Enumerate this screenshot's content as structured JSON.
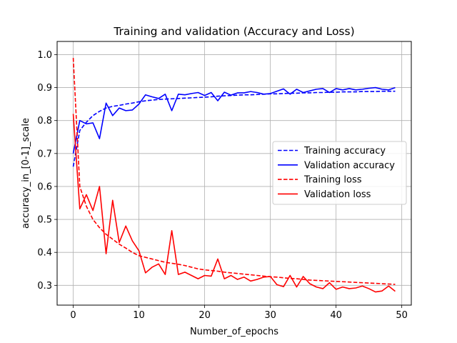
{
  "chart_data": {
    "type": "line",
    "title": "Training and validation (Accuracy and Loss)",
    "xlabel": "Number_of_epochs",
    "ylabel": "accuracy_in_[0-1]_scale",
    "xlim": [
      -2.45,
      51.45
    ],
    "ylim": [
      0.24,
      1.04
    ],
    "xticks": [
      0,
      10,
      20,
      30,
      40,
      50
    ],
    "yticks": [
      0.3,
      0.4,
      0.5,
      0.6,
      0.7,
      0.8,
      0.9,
      1.0
    ],
    "xtick_labels": [
      "0",
      "10",
      "20",
      "30",
      "40",
      "50"
    ],
    "ytick_labels": [
      "0.3",
      "0.4",
      "0.5",
      "0.6",
      "0.7",
      "0.8",
      "0.9",
      "1.0"
    ],
    "grid": true,
    "legend_position": "center-right",
    "x": [
      0,
      1,
      2,
      3,
      4,
      5,
      6,
      7,
      8,
      9,
      10,
      11,
      12,
      13,
      14,
      15,
      16,
      17,
      18,
      19,
      20,
      21,
      22,
      23,
      24,
      25,
      26,
      27,
      28,
      29,
      30,
      31,
      32,
      33,
      34,
      35,
      36,
      37,
      38,
      39,
      40,
      41,
      42,
      43,
      44,
      45,
      46,
      47,
      48,
      49
    ],
    "series": [
      {
        "name": "Training accuracy",
        "color": "#0000ff",
        "dash": "dashed",
        "values": [
          0.66,
          0.77,
          0.795,
          0.815,
          0.828,
          0.838,
          0.843,
          0.846,
          0.85,
          0.853,
          0.857,
          0.86,
          0.862,
          0.864,
          0.865,
          0.866,
          0.867,
          0.868,
          0.869,
          0.87,
          0.871,
          0.872,
          0.874,
          0.875,
          0.876,
          0.877,
          0.878,
          0.878,
          0.879,
          0.88,
          0.881,
          0.881,
          0.882,
          0.883,
          0.883,
          0.884,
          0.884,
          0.885,
          0.885,
          0.886,
          0.886,
          0.887,
          0.887,
          0.887,
          0.888,
          0.888,
          0.888,
          0.889,
          0.889,
          0.889
        ]
      },
      {
        "name": "Validation accuracy",
        "color": "#0000ff",
        "dash": "solid",
        "values": [
          0.7,
          0.8,
          0.79,
          0.793,
          0.745,
          0.853,
          0.815,
          0.838,
          0.83,
          0.832,
          0.85,
          0.878,
          0.872,
          0.867,
          0.88,
          0.83,
          0.88,
          0.878,
          0.882,
          0.885,
          0.876,
          0.885,
          0.86,
          0.886,
          0.877,
          0.884,
          0.884,
          0.888,
          0.885,
          0.88,
          0.882,
          0.889,
          0.896,
          0.88,
          0.895,
          0.885,
          0.89,
          0.895,
          0.897,
          0.885,
          0.897,
          0.893,
          0.897,
          0.893,
          0.895,
          0.898,
          0.9,
          0.895,
          0.893,
          0.9
        ]
      },
      {
        "name": "Training loss",
        "color": "#ff0000",
        "dash": "dashed",
        "values": [
          0.99,
          0.6,
          0.54,
          0.5,
          0.475,
          0.455,
          0.44,
          0.425,
          0.413,
          0.4,
          0.39,
          0.385,
          0.38,
          0.375,
          0.37,
          0.367,
          0.364,
          0.36,
          0.355,
          0.35,
          0.347,
          0.345,
          0.343,
          0.34,
          0.338,
          0.336,
          0.334,
          0.332,
          0.33,
          0.328,
          0.326,
          0.325,
          0.323,
          0.321,
          0.32,
          0.318,
          0.316,
          0.315,
          0.314,
          0.313,
          0.312,
          0.311,
          0.31,
          0.309,
          0.308,
          0.307,
          0.306,
          0.305,
          0.304,
          0.303
        ]
      },
      {
        "name": "Validation loss",
        "color": "#ff0000",
        "dash": "solid",
        "values": [
          0.82,
          0.532,
          0.575,
          0.527,
          0.6,
          0.396,
          0.558,
          0.43,
          0.48,
          0.435,
          0.405,
          0.338,
          0.355,
          0.365,
          0.333,
          0.466,
          0.333,
          0.34,
          0.33,
          0.32,
          0.33,
          0.328,
          0.38,
          0.32,
          0.33,
          0.318,
          0.325,
          0.313,
          0.318,
          0.325,
          0.327,
          0.302,
          0.296,
          0.33,
          0.295,
          0.327,
          0.305,
          0.295,
          0.29,
          0.308,
          0.288,
          0.295,
          0.29,
          0.292,
          0.298,
          0.29,
          0.28,
          0.283,
          0.298,
          0.282
        ]
      }
    ]
  }
}
